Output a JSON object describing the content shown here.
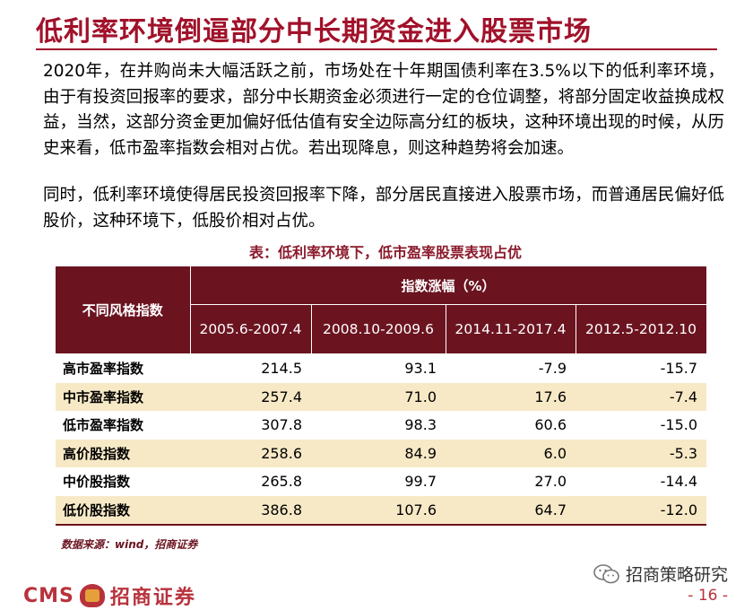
{
  "title": "低利率环境倒逼部分中长期资金进入股票市场",
  "paragraphs": [
    "2020年，在并购尚未大幅活跃之前，市场处在十年期国债利率在3.5%以下的低利率环境，由于有投资回报率的要求，部分中长期资金必须进行一定的仓位调整，将部分固定收益换成权益，当然，这部分资金更加偏好低估值有安全边际高分红的板块，这种环境出现的时候，从历史来看，低市盈率指数会相对占优。若出现降息，则这种趋势将会加速。",
    "同时，低利率环境使得居民投资回报率下降，部分居民直接进入股票市场，而普通居民偏好低股价，这种环境下，低股价相对占优。"
  ],
  "table": {
    "caption": "表：低利率环境下，低市盈率股票表现占优",
    "style_header": "不同风格指数",
    "group_header": "指数涨幅（%）",
    "periods": [
      "2005.6-2007.4",
      "2008.10-2009.6",
      "2014.11-2017.4",
      "2012.5-2012.10"
    ],
    "rows": [
      {
        "name": "高市盈率指数",
        "values": [
          "214.5",
          "93.1",
          "-7.9",
          "-15.7"
        ]
      },
      {
        "name": "中市盈率指数",
        "values": [
          "257.4",
          "71.0",
          "17.6",
          "-7.4"
        ]
      },
      {
        "name": "低市盈率指数",
        "values": [
          "307.8",
          "98.3",
          "60.6",
          "-15.0"
        ]
      },
      {
        "name": "高价股指数",
        "values": [
          "258.6",
          "84.9",
          "6.0",
          "-5.3"
        ]
      },
      {
        "name": "中价股指数",
        "values": [
          "265.8",
          "99.7",
          "27.0",
          "-14.4"
        ]
      },
      {
        "name": "低价股指数",
        "values": [
          "386.8",
          "107.6",
          "64.7",
          "-12.0"
        ]
      }
    ],
    "source": "数据来源：wind，招商证券"
  },
  "footer": {
    "logo_en": "CMS",
    "logo_cn": "招商证券",
    "brand": "招商策略研究",
    "page": "- 16 -"
  },
  "colors": {
    "title": "#a1112a",
    "header_bg": "#6b1420",
    "alt_row": "#f7e9c6"
  }
}
